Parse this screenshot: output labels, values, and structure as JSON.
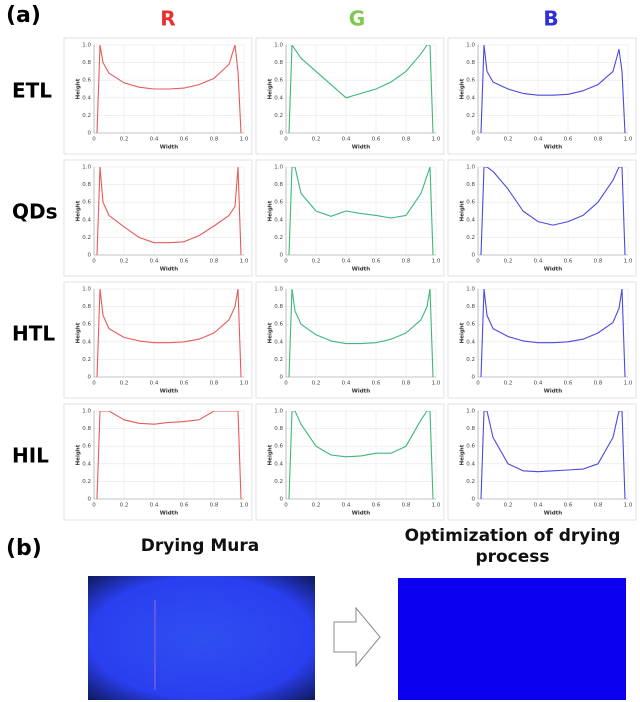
{
  "labels": {
    "panel_a": "(a)",
    "panel_b": "(b)",
    "columns": [
      "R",
      "G",
      "B"
    ],
    "rows": [
      "ETL",
      "QDs",
      "HTL",
      "HIL"
    ],
    "left_image_title": "Drying Mura",
    "right_image_title": "Optimization of drying process"
  },
  "chart_data": [
    {
      "type": "line",
      "xlabel": "Width",
      "ylabel": "Height",
      "xlim": [
        0,
        1
      ],
      "ylim": [
        0,
        1
      ],
      "xticks": [
        0,
        0.2,
        0.4,
        0.6,
        0.8,
        {
          "value": 1,
          "label": "1.0"
        }
      ],
      "yticks": [
        0,
        0.2,
        0.4,
        0.6,
        0.8,
        {
          "value": 1,
          "label": "1.0"
        }
      ],
      "x": [
        0.02,
        0.04,
        0.06,
        0.1,
        0.2,
        0.3,
        0.4,
        0.5,
        0.6,
        0.7,
        0.8,
        0.9,
        0.94,
        0.96,
        0.98
      ],
      "series": [
        {
          "color": "#e85a5a",
          "values": [
            0,
            1.0,
            0.8,
            0.68,
            0.57,
            0.52,
            0.5,
            0.5,
            0.51,
            0.55,
            0.62,
            0.78,
            1.0,
            0.7,
            0
          ]
        }
      ]
    },
    {
      "type": "line",
      "xlabel": "Width",
      "ylabel": "Height",
      "xlim": [
        0,
        1
      ],
      "ylim": [
        0,
        1
      ],
      "xticks": [
        0,
        0.2,
        0.4,
        0.6,
        0.8,
        {
          "value": 1,
          "label": "1.0"
        }
      ],
      "yticks": [
        0,
        0.2,
        0.4,
        0.6,
        0.8,
        {
          "value": 1,
          "label": "1.0"
        }
      ],
      "x": [
        0.02,
        0.04,
        0.06,
        0.1,
        0.2,
        0.3,
        0.4,
        0.5,
        0.6,
        0.7,
        0.8,
        0.9,
        0.94,
        0.96,
        0.98
      ],
      "series": [
        {
          "color": "#3cb878",
          "values": [
            0,
            1.0,
            0.95,
            0.85,
            0.7,
            0.55,
            0.4,
            0.45,
            0.5,
            0.58,
            0.7,
            0.9,
            1.0,
            1.0,
            0
          ]
        }
      ]
    },
    {
      "type": "line",
      "xlabel": "Width",
      "ylabel": "Height",
      "xlim": [
        0,
        1
      ],
      "ylim": [
        0,
        1
      ],
      "xticks": [
        0,
        0.2,
        0.4,
        0.6,
        0.8,
        {
          "value": 1,
          "label": "1.0"
        }
      ],
      "yticks": [
        0,
        0.2,
        0.4,
        0.6,
        0.8,
        {
          "value": 1,
          "label": "1.0"
        }
      ],
      "x": [
        0.02,
        0.04,
        0.06,
        0.1,
        0.2,
        0.3,
        0.4,
        0.5,
        0.6,
        0.7,
        0.8,
        0.9,
        0.94,
        0.96,
        0.98
      ],
      "series": [
        {
          "color": "#4a4ae0",
          "values": [
            0,
            1.0,
            0.7,
            0.58,
            0.5,
            0.45,
            0.43,
            0.43,
            0.44,
            0.48,
            0.55,
            0.7,
            0.95,
            0.7,
            0
          ]
        }
      ]
    },
    {
      "type": "line",
      "xlabel": "Width",
      "ylabel": "Height",
      "xlim": [
        0,
        1
      ],
      "ylim": [
        0,
        1
      ],
      "xticks": [
        0,
        0.2,
        0.4,
        0.6,
        0.8,
        {
          "value": 1,
          "label": "1.0"
        }
      ],
      "yticks": [
        0,
        0.2,
        0.4,
        0.6,
        0.8,
        {
          "value": 1,
          "label": "1.0"
        }
      ],
      "x": [
        0.02,
        0.04,
        0.06,
        0.1,
        0.2,
        0.3,
        0.4,
        0.5,
        0.6,
        0.7,
        0.8,
        0.9,
        0.94,
        0.96,
        0.98
      ],
      "series": [
        {
          "color": "#e85a5a",
          "values": [
            0,
            1.0,
            0.6,
            0.45,
            0.32,
            0.2,
            0.14,
            0.14,
            0.15,
            0.22,
            0.33,
            0.45,
            0.55,
            1.0,
            0
          ]
        }
      ]
    },
    {
      "type": "line",
      "xlabel": "Width",
      "ylabel": "Height",
      "xlim": [
        0,
        1
      ],
      "ylim": [
        0,
        1
      ],
      "xticks": [
        0,
        0.2,
        0.4,
        0.6,
        0.8,
        {
          "value": 1,
          "label": "1.0"
        }
      ],
      "yticks": [
        0,
        0.2,
        0.4,
        0.6,
        0.8,
        {
          "value": 1,
          "label": "1.0"
        }
      ],
      "x": [
        0.02,
        0.04,
        0.06,
        0.1,
        0.2,
        0.3,
        0.4,
        0.5,
        0.6,
        0.7,
        0.8,
        0.9,
        0.94,
        0.96,
        0.98
      ],
      "series": [
        {
          "color": "#3cb878",
          "values": [
            0,
            1.0,
            1.0,
            0.7,
            0.5,
            0.44,
            0.5,
            0.47,
            0.45,
            0.42,
            0.45,
            0.7,
            0.9,
            1.0,
            0
          ]
        }
      ]
    },
    {
      "type": "line",
      "xlabel": "Width",
      "ylabel": "Height",
      "xlim": [
        0,
        1
      ],
      "ylim": [
        0,
        1
      ],
      "xticks": [
        0,
        0.2,
        0.4,
        0.6,
        0.8,
        {
          "value": 1,
          "label": "1.0"
        }
      ],
      "yticks": [
        0,
        0.2,
        0.4,
        0.6,
        0.8,
        {
          "value": 1,
          "label": "1.0"
        }
      ],
      "x": [
        0.02,
        0.04,
        0.06,
        0.1,
        0.2,
        0.3,
        0.4,
        0.5,
        0.6,
        0.7,
        0.8,
        0.9,
        0.94,
        0.96,
        0.98
      ],
      "series": [
        {
          "color": "#4a4ae0",
          "values": [
            0,
            1.0,
            1.0,
            0.95,
            0.75,
            0.5,
            0.38,
            0.34,
            0.38,
            0.45,
            0.6,
            0.85,
            1.0,
            1.0,
            0
          ]
        }
      ]
    },
    {
      "type": "line",
      "xlabel": "Width",
      "ylabel": "Height",
      "xlim": [
        0,
        1
      ],
      "ylim": [
        0,
        1
      ],
      "xticks": [
        0,
        0.2,
        0.4,
        0.6,
        0.8,
        {
          "value": 1,
          "label": "1.0"
        }
      ],
      "yticks": [
        0,
        0.2,
        0.4,
        0.6,
        0.8,
        {
          "value": 1,
          "label": "1.0"
        }
      ],
      "x": [
        0.02,
        0.04,
        0.06,
        0.1,
        0.2,
        0.3,
        0.4,
        0.5,
        0.6,
        0.7,
        0.8,
        0.9,
        0.94,
        0.96,
        0.98
      ],
      "series": [
        {
          "color": "#e85a5a",
          "values": [
            0,
            1.0,
            0.7,
            0.55,
            0.45,
            0.41,
            0.39,
            0.39,
            0.4,
            0.43,
            0.5,
            0.65,
            0.8,
            1.0,
            0
          ]
        }
      ]
    },
    {
      "type": "line",
      "xlabel": "Width",
      "ylabel": "Height",
      "xlim": [
        0,
        1
      ],
      "ylim": [
        0,
        1
      ],
      "xticks": [
        0,
        0.2,
        0.4,
        0.6,
        0.8,
        {
          "value": 1,
          "label": "1.0"
        }
      ],
      "yticks": [
        0,
        0.2,
        0.4,
        0.6,
        0.8,
        {
          "value": 1,
          "label": "1.0"
        }
      ],
      "x": [
        0.02,
        0.04,
        0.06,
        0.1,
        0.2,
        0.3,
        0.4,
        0.5,
        0.6,
        0.7,
        0.8,
        0.9,
        0.94,
        0.96,
        0.98
      ],
      "series": [
        {
          "color": "#3cb878",
          "values": [
            0,
            1.0,
            0.75,
            0.6,
            0.48,
            0.41,
            0.38,
            0.38,
            0.39,
            0.43,
            0.5,
            0.65,
            0.8,
            1.0,
            0
          ]
        }
      ]
    },
    {
      "type": "line",
      "xlabel": "Width",
      "ylabel": "Height",
      "xlim": [
        0,
        1
      ],
      "ylim": [
        0,
        1
      ],
      "xticks": [
        0,
        0.2,
        0.4,
        0.6,
        0.8,
        {
          "value": 1,
          "label": "1.0"
        }
      ],
      "yticks": [
        0,
        0.2,
        0.4,
        0.6,
        0.8,
        {
          "value": 1,
          "label": "1.0"
        }
      ],
      "x": [
        0.02,
        0.04,
        0.06,
        0.1,
        0.2,
        0.3,
        0.4,
        0.5,
        0.6,
        0.7,
        0.8,
        0.9,
        0.94,
        0.96,
        0.98
      ],
      "series": [
        {
          "color": "#4a4ae0",
          "values": [
            0,
            1.0,
            0.7,
            0.55,
            0.46,
            0.41,
            0.39,
            0.39,
            0.4,
            0.43,
            0.5,
            0.62,
            0.78,
            1.0,
            0
          ]
        }
      ]
    },
    {
      "type": "line",
      "xlabel": "Width",
      "ylabel": "Height",
      "xlim": [
        0,
        1
      ],
      "ylim": [
        0,
        1
      ],
      "xticks": [
        0,
        0.2,
        0.4,
        0.6,
        0.8,
        {
          "value": 1,
          "label": "1.0"
        }
      ],
      "yticks": [
        0,
        0.2,
        0.4,
        0.6,
        0.8,
        {
          "value": 1,
          "label": "1.0"
        }
      ],
      "x": [
        0.02,
        0.04,
        0.06,
        0.1,
        0.2,
        0.3,
        0.4,
        0.5,
        0.6,
        0.7,
        0.8,
        0.9,
        0.94,
        0.96,
        0.98
      ],
      "series": [
        {
          "color": "#e85a5a",
          "values": [
            0,
            1.0,
            1.0,
            1.0,
            0.9,
            0.86,
            0.85,
            0.87,
            0.88,
            0.9,
            1.0,
            1.0,
            1.0,
            1.0,
            0
          ]
        }
      ]
    },
    {
      "type": "line",
      "xlabel": "Width",
      "ylabel": "Height",
      "xlim": [
        0,
        1
      ],
      "ylim": [
        0,
        1
      ],
      "xticks": [
        0,
        0.2,
        0.4,
        0.6,
        0.8,
        {
          "value": 1,
          "label": "1.0"
        }
      ],
      "yticks": [
        0,
        0.2,
        0.4,
        0.6,
        0.8,
        {
          "value": 1,
          "label": "1.0"
        }
      ],
      "x": [
        0.02,
        0.04,
        0.06,
        0.1,
        0.2,
        0.3,
        0.4,
        0.5,
        0.6,
        0.7,
        0.8,
        0.9,
        0.94,
        0.96,
        0.98
      ],
      "series": [
        {
          "color": "#3cb878",
          "values": [
            0,
            1.0,
            1.0,
            0.85,
            0.6,
            0.5,
            0.48,
            0.49,
            0.52,
            0.52,
            0.6,
            0.9,
            1.0,
            1.0,
            0
          ]
        }
      ]
    },
    {
      "type": "line",
      "xlabel": "Width",
      "ylabel": "Height",
      "xlim": [
        0,
        1
      ],
      "ylim": [
        0,
        1
      ],
      "xticks": [
        0,
        0.2,
        0.4,
        0.6,
        0.8,
        {
          "value": 1,
          "label": "1.0"
        }
      ],
      "yticks": [
        0,
        0.2,
        0.4,
        0.6,
        0.8,
        {
          "value": 1,
          "label": "1.0"
        }
      ],
      "x": [
        0.02,
        0.04,
        0.06,
        0.1,
        0.2,
        0.3,
        0.4,
        0.5,
        0.6,
        0.7,
        0.8,
        0.9,
        0.94,
        0.96,
        0.98
      ],
      "series": [
        {
          "color": "#4a4ae0",
          "values": [
            0,
            1.0,
            1.0,
            0.7,
            0.4,
            0.32,
            0.31,
            0.32,
            0.33,
            0.34,
            0.4,
            0.7,
            1.0,
            1.0,
            0
          ]
        }
      ]
    }
  ]
}
